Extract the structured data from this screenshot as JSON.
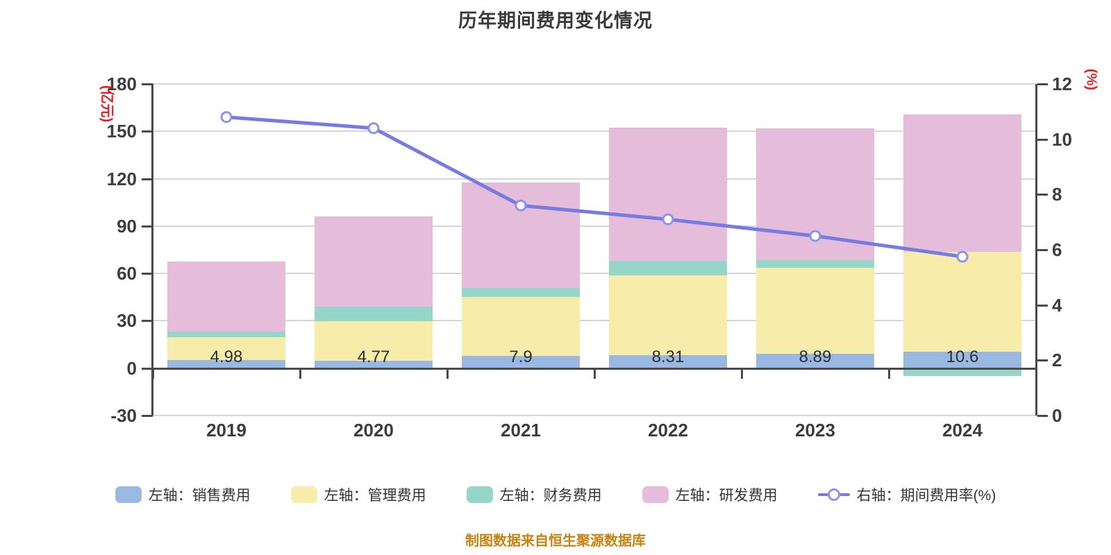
{
  "title": "历年期间费用变化情况",
  "source_note": "制图数据来自恒生聚源数据库",
  "colors": {
    "sales": "#99b9e3",
    "admin": "#f8ecaa",
    "finance": "#96d6c9",
    "rnd": "#e6bcdb",
    "rate_line": "#767ae3",
    "marker_ring": "#8d92ee",
    "axis": "#4a4a4a",
    "grid": "#d6d6d6",
    "tick_text": "#3d3d3d",
    "unit_red": "#e81f1f",
    "source_orange": "#c9820f",
    "bar_label_text": "#2e2e2e"
  },
  "chart_data": {
    "type": "combo: stacked-bar + line",
    "categories": [
      "2019",
      "2020",
      "2021",
      "2022",
      "2023",
      "2024"
    ],
    "bar_series": [
      {
        "name": "左轴：销售费用",
        "key": "sales",
        "axis": "left",
        "values": [
          4.98,
          4.77,
          7.9,
          8.31,
          8.89,
          10.6
        ]
      },
      {
        "name": "左轴：管理费用",
        "key": "admin",
        "axis": "left",
        "values": [
          14.8,
          24.8,
          37.3,
          50.5,
          54.9,
          63.1
        ]
      },
      {
        "name": "左轴：财务费用",
        "key": "finance",
        "axis": "left",
        "values": [
          3.2,
          9.2,
          5.6,
          9.1,
          4.5,
          -4.8
        ]
      },
      {
        "name": "左轴：研发费用",
        "key": "rnd",
        "axis": "left",
        "values": [
          44.6,
          57.3,
          66.8,
          84.6,
          83.4,
          86.8
        ]
      }
    ],
    "line_series": {
      "name": "右轴：期间费用率(%)",
      "key": "rate",
      "axis": "right",
      "values": [
        10.8,
        10.4,
        7.6,
        7.1,
        6.5,
        5.75
      ]
    },
    "bar_value_labels": [
      "4.98",
      "4.77",
      "7.9",
      "8.31",
      "8.89",
      "10.6"
    ],
    "left_axis": {
      "unit": "(亿元)",
      "min": -30,
      "max": 180,
      "ticks": [
        180,
        150,
        120,
        90,
        60,
        30,
        0,
        -30
      ]
    },
    "right_axis": {
      "unit": "(%)",
      "min": 0,
      "max": 12,
      "ticks": [
        12,
        10,
        8,
        6,
        4,
        2,
        0
      ]
    },
    "legend_position": "bottom",
    "grid": true
  }
}
